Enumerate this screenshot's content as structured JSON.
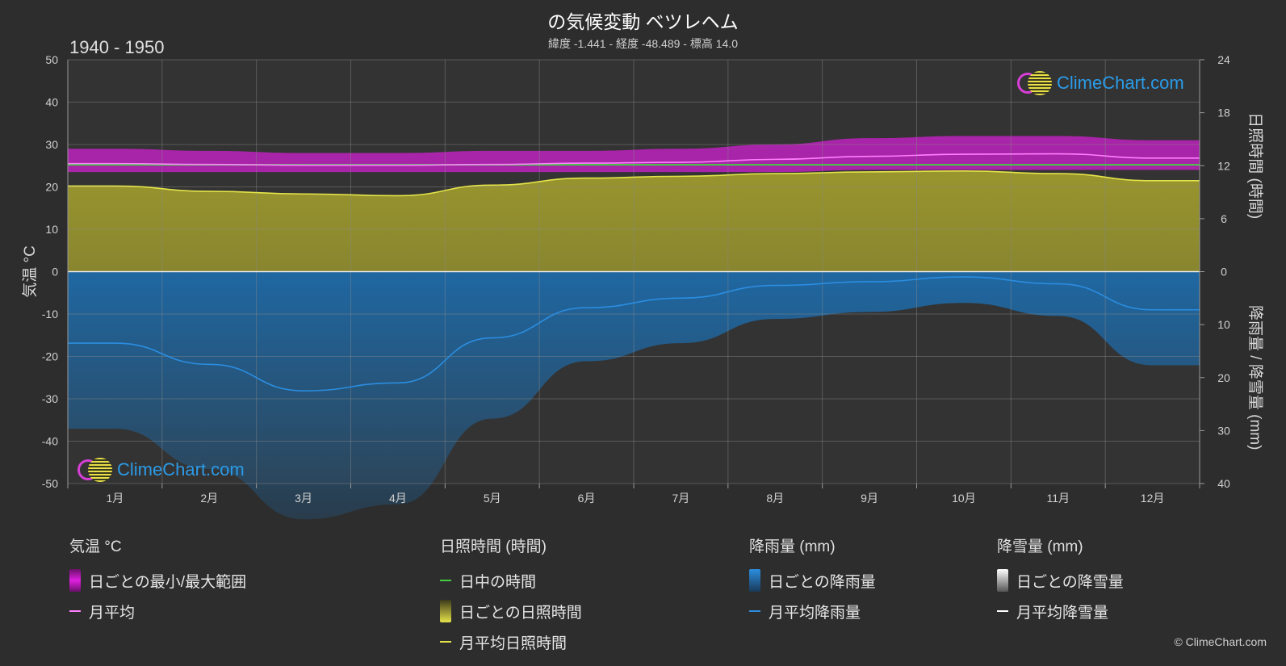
{
  "header": {
    "title": "の気候変動 ベツレヘム",
    "subtitle": "緯度 -1.441 - 経度 -48.489 - 標高 14.0",
    "period": "1940 - 1950",
    "copyright": "© ClimeChart.com"
  },
  "logo": {
    "text": "ClimeChart.com"
  },
  "colors": {
    "background": "#2d2d2d",
    "temp_range": "#d020d0",
    "temp_mean": "#ff80ff",
    "daylight": "#44cc44",
    "sunshine_fill": "#9e9a2e",
    "sunshine_mean": "#e4e44a",
    "rain_fill": "#1e6aa8",
    "rain_mean": "#2b8de0",
    "snow": "#ffffff",
    "grid": "#5a5a5a"
  },
  "chart_data": {
    "type": "area",
    "categories": [
      "1月",
      "2月",
      "3月",
      "4月",
      "5月",
      "6月",
      "7月",
      "8月",
      "9月",
      "10月",
      "11月",
      "12月"
    ],
    "left_axis": {
      "label": "気温 °C",
      "range": [
        -50,
        50
      ],
      "ticks": [
        "50",
        "40",
        "30",
        "20",
        "10",
        "0",
        "-10",
        "-20",
        "-30",
        "-40",
        "-50"
      ]
    },
    "right_axis_top": {
      "label": "日照時間 (時間)",
      "range": [
        0,
        24
      ],
      "ticks": [
        "24",
        "18",
        "12",
        "6",
        "0"
      ]
    },
    "right_axis_bottom": {
      "label": "降雨量 / 降雪量 (mm)",
      "range": [
        0,
        40
      ],
      "ticks": [
        "10",
        "20",
        "30",
        "40"
      ]
    },
    "grid": true,
    "series": [
      {
        "name": "日ごとの最小/最大範囲",
        "min": [
          23.5,
          23.5,
          23.5,
          23.5,
          23.5,
          23.5,
          23.5,
          23.5,
          24,
          24,
          24,
          24
        ],
        "max": [
          29,
          28.5,
          28,
          28,
          28.5,
          28.5,
          29,
          30,
          31.5,
          32,
          32,
          31
        ]
      },
      {
        "name": "月平均",
        "values": [
          25.5,
          25.3,
          25.1,
          25.1,
          25.3,
          25.6,
          25.8,
          26.5,
          27.2,
          27.7,
          27.8,
          26.8
        ]
      },
      {
        "name": "日中の時間",
        "values": [
          12.1,
          12.1,
          12.1,
          12.1,
          12.1,
          12.1,
          12.1,
          12.1,
          12.1,
          12.1,
          12.1,
          12.1
        ]
      },
      {
        "name": "月平均日照時間",
        "values": [
          9.7,
          9.1,
          8.8,
          8.6,
          9.8,
          10.6,
          10.8,
          11.1,
          11.3,
          11.4,
          11.1,
          10.3
        ]
      },
      {
        "name": "月平均降雨量",
        "values": [
          13.5,
          17.5,
          22.5,
          21,
          12.5,
          6.8,
          5,
          2.6,
          1.9,
          1,
          2.3,
          7.2
        ]
      },
      {
        "name": "月平均降雪量",
        "values": [
          0,
          0,
          0,
          0,
          0,
          0,
          0,
          0,
          0,
          0,
          0,
          0
        ]
      }
    ]
  },
  "legend": {
    "groups": [
      {
        "title": "気温 °C",
        "items": [
          "日ごとの最小/最大範囲",
          "月平均"
        ]
      },
      {
        "title": "日照時間 (時間)",
        "items": [
          "日中の時間",
          "日ごとの日照時間",
          "月平均日照時間"
        ]
      },
      {
        "title": "降雨量 (mm)",
        "items": [
          "日ごとの降雨量",
          "月平均降雨量"
        ]
      },
      {
        "title": "降雪量 (mm)",
        "items": [
          "日ごとの降雪量",
          "月平均降雪量"
        ]
      }
    ]
  }
}
